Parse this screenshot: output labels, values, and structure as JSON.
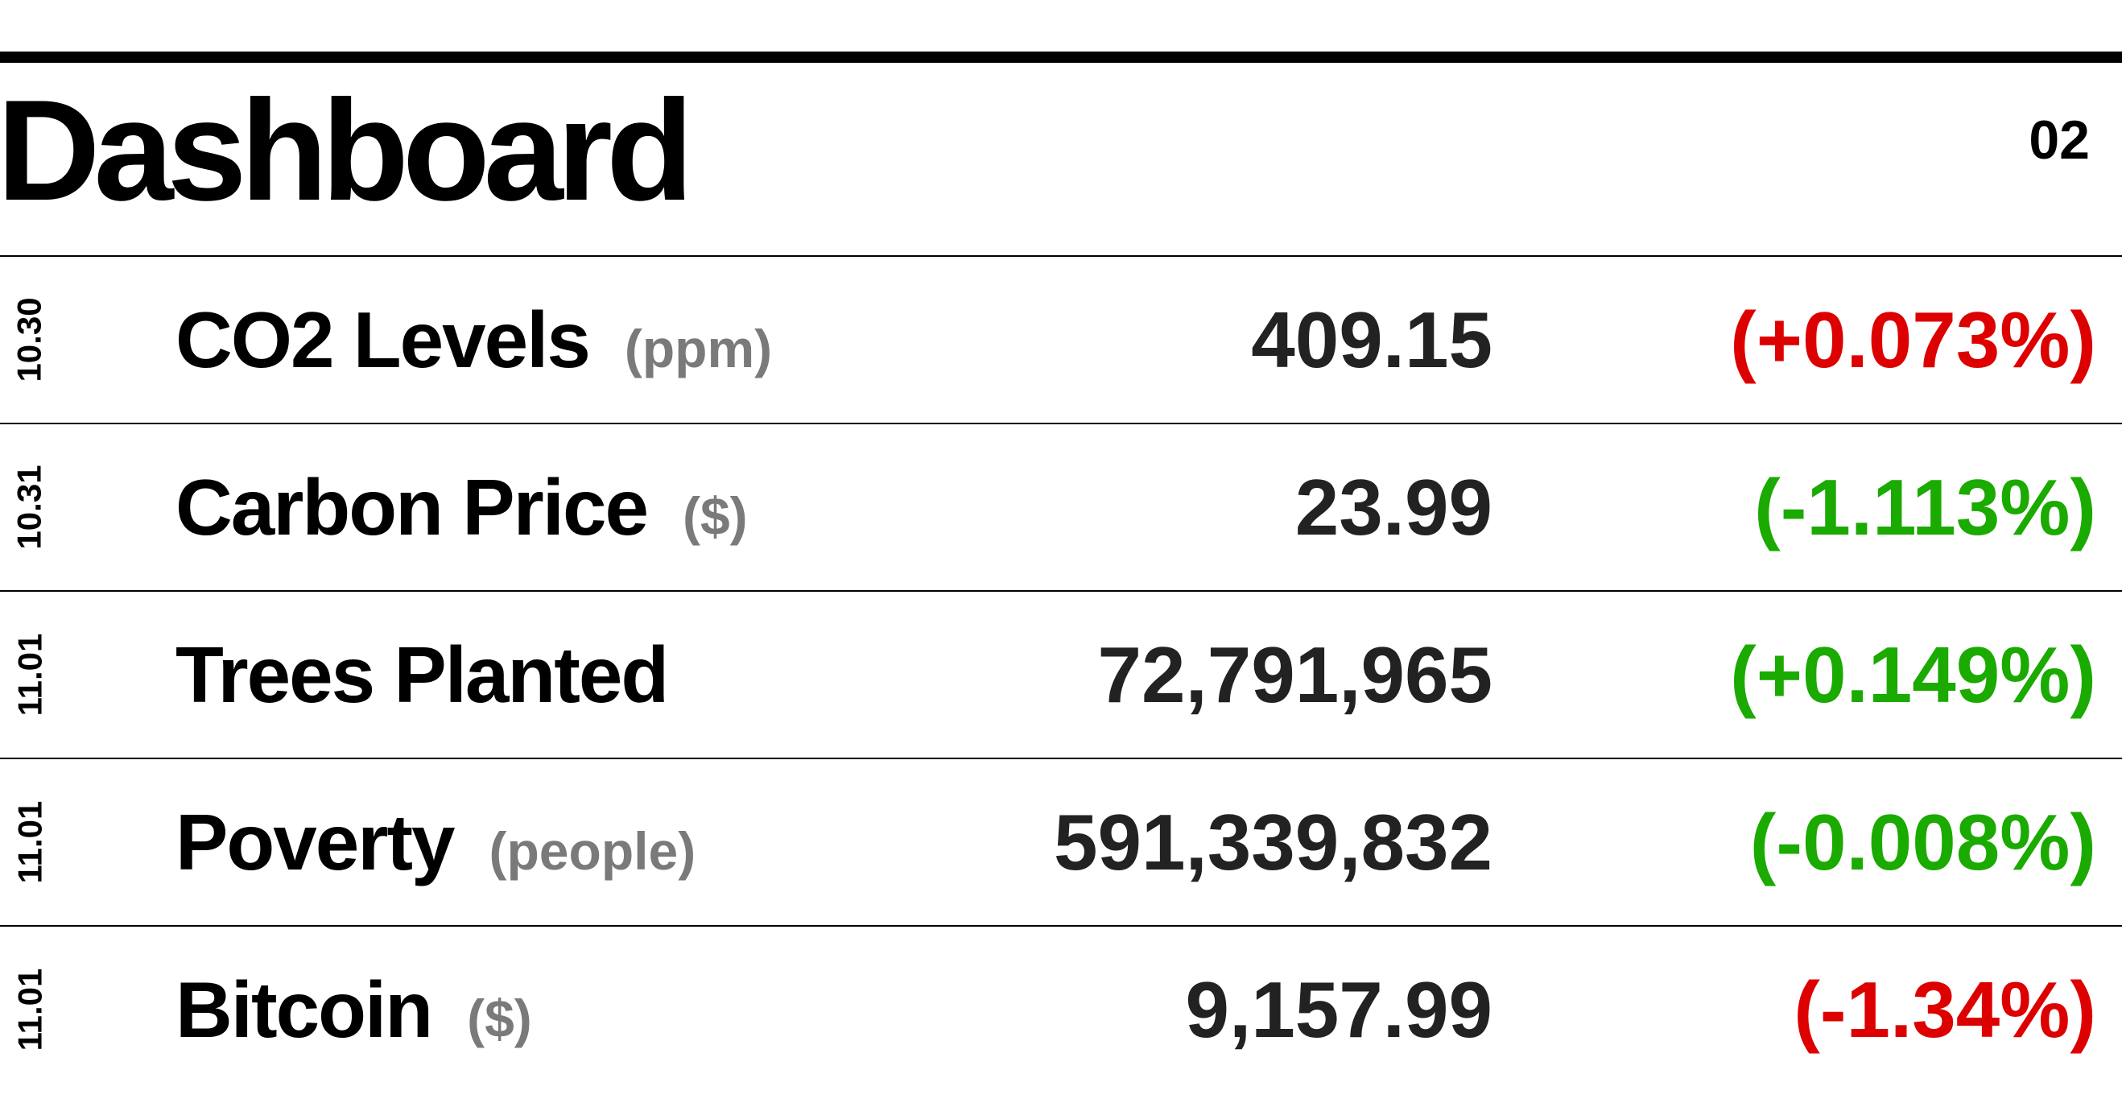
{
  "header": {
    "title": "Dashboard",
    "page_number": "02"
  },
  "rows": [
    {
      "date": "10.30",
      "label": "CO2 Levels",
      "unit": "(ppm)",
      "value": "409.15",
      "change": "(+0.073%)",
      "change_color": "#dd0000"
    },
    {
      "date": "10.31",
      "label": "Carbon Price",
      "unit": "($)",
      "value": "23.99",
      "change": "(-1.113%)",
      "change_color": "#1aaa00"
    },
    {
      "date": "11.01",
      "label": "Trees Planted",
      "unit": "",
      "value": "72,791,965",
      "change": "(+0.149%)",
      "change_color": "#1aaa00"
    },
    {
      "date": "11.01",
      "label": "Poverty",
      "unit": "(people)",
      "value": "591,339,832",
      "change": "(-0.008%)",
      "change_color": "#1aaa00"
    },
    {
      "date": "11.01",
      "label": "Bitcoin",
      "unit": "($)",
      "value": "9,157.99",
      "change": "(-1.34%)",
      "change_color": "#dd0000"
    }
  ]
}
